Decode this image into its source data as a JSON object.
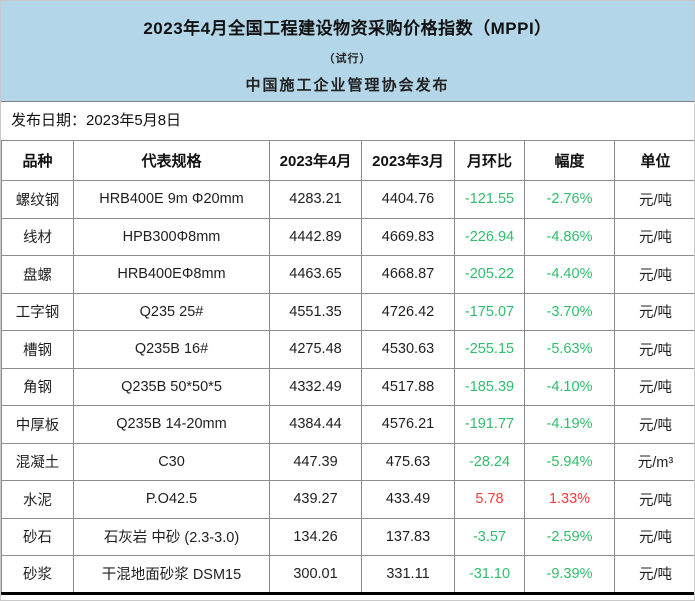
{
  "header": {
    "title": "2023年4月全国工程建设物资采购价格指数（MPPI）",
    "subtitle": "（试行）",
    "publisher": "中国施工企业管理协会发布",
    "background_color": "#b3d6e8"
  },
  "release": {
    "text": "发布日期：2023年5月8日"
  },
  "table": {
    "columns": [
      "品种",
      "代表规格",
      "2023年4月",
      "2023年3月",
      "月环比",
      "幅度",
      "单位"
    ],
    "colors": {
      "decrease": "#2fbe6b",
      "increase": "#fa3b3b"
    },
    "rows": [
      {
        "name": "螺纹钢",
        "spec": "HRB400E 9m Φ20mm",
        "apr": "4283.21",
        "mar": "4404.76",
        "mom": "-121.55",
        "pct": "-2.76%",
        "unit": "元/吨"
      },
      {
        "name": "线材",
        "spec": "HPB300Φ8mm",
        "apr": "4442.89",
        "mar": "4669.83",
        "mom": "-226.94",
        "pct": "-4.86%",
        "unit": "元/吨"
      },
      {
        "name": "盘螺",
        "spec": "HRB400EΦ8mm",
        "apr": "4463.65",
        "mar": "4668.87",
        "mom": "-205.22",
        "pct": "-4.40%",
        "unit": "元/吨"
      },
      {
        "name": "工字钢",
        "spec": "Q235 25#",
        "apr": "4551.35",
        "mar": "4726.42",
        "mom": "-175.07",
        "pct": "-3.70%",
        "unit": "元/吨"
      },
      {
        "name": "槽钢",
        "spec": "Q235B 16#",
        "apr": "4275.48",
        "mar": "4530.63",
        "mom": "-255.15",
        "pct": "-5.63%",
        "unit": "元/吨"
      },
      {
        "name": "角钢",
        "spec": "Q235B 50*50*5",
        "apr": "4332.49",
        "mar": "4517.88",
        "mom": "-185.39",
        "pct": "-4.10%",
        "unit": "元/吨"
      },
      {
        "name": "中厚板",
        "spec": "Q235B 14-20mm",
        "apr": "4384.44",
        "mar": "4576.21",
        "mom": "-191.77",
        "pct": "-4.19%",
        "unit": "元/吨"
      },
      {
        "name": "混凝土",
        "spec": "C30",
        "apr": "447.39",
        "mar": "475.63",
        "mom": "-28.24",
        "pct": "-5.94%",
        "unit": "元/m³"
      },
      {
        "name": "水泥",
        "spec": "P.O42.5",
        "apr": "439.27",
        "mar": "433.49",
        "mom": "5.78",
        "pct": "1.33%",
        "unit": "元/吨"
      },
      {
        "name": "砂石",
        "spec": "石灰岩 中砂 (2.3-3.0)",
        "apr": "134.26",
        "mar": "137.83",
        "mom": "-3.57",
        "pct": "-2.59%",
        "unit": "元/吨"
      },
      {
        "name": "砂浆",
        "spec": "干混地面砂浆 DSM15",
        "apr": "300.01",
        "mar": "331.11",
        "mom": "-31.10",
        "pct": "-9.39%",
        "unit": "元/吨"
      }
    ]
  }
}
